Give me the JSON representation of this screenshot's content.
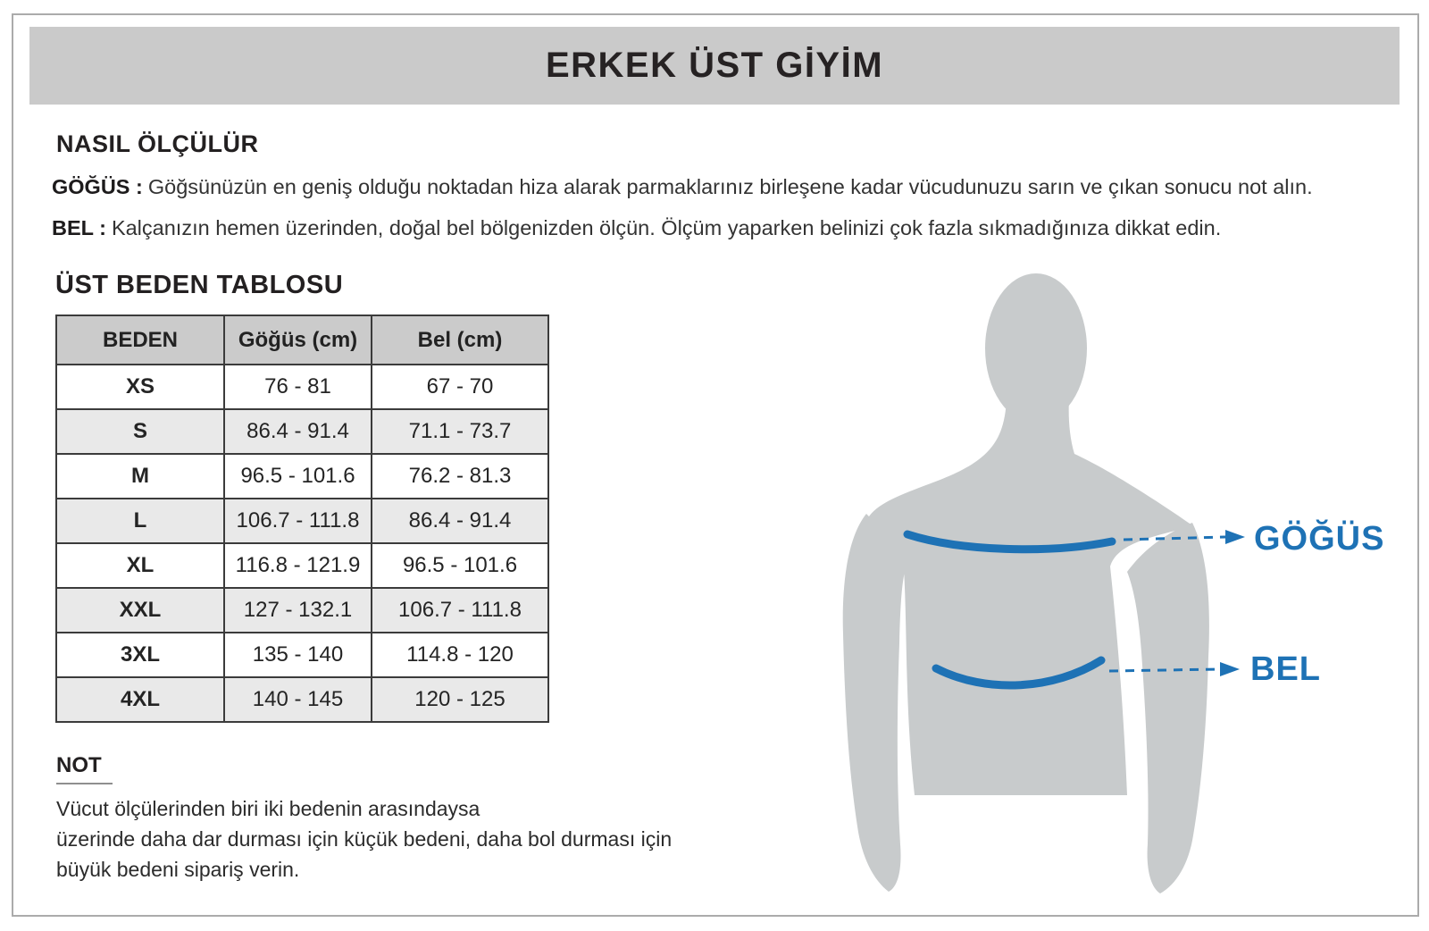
{
  "header": {
    "title": "ERKEK ÜST GİYİM"
  },
  "howto": {
    "title": "NASIL ÖLÇÜLÜR",
    "chest": {
      "label": "GÖĞÜS :",
      "text": "Göğsünüzün en geniş olduğu noktadan hiza alarak parmaklarınız birleşene kadar vücudunuzu sarın ve çıkan sonucu not alın."
    },
    "waist": {
      "label": "BEL :",
      "text": "Kalçanızın hemen üzerinden, doğal bel bölgenizden ölçün. Ölçüm yaparken belinizi çok fazla sıkmadığınıza dikkat edin."
    }
  },
  "size_table": {
    "title": "ÜST BEDEN TABLOSU",
    "columns": [
      "BEDEN",
      "Göğüs (cm)",
      "Bel (cm)"
    ],
    "rows": [
      {
        "size": "XS",
        "chest": "76 - 81",
        "waist": "67 - 70"
      },
      {
        "size": "S",
        "chest": "86.4 - 91.4",
        "waist": "71.1 - 73.7"
      },
      {
        "size": "M",
        "chest": "96.5 - 101.6",
        "waist": "76.2 - 81.3"
      },
      {
        "size": "L",
        "chest": "106.7 - 111.8",
        "waist": "86.4 - 91.4"
      },
      {
        "size": "XL",
        "chest": "116.8 - 121.9",
        "waist": "96.5 - 101.6"
      },
      {
        "size": "XXL",
        "chest": "127 - 132.1",
        "waist": "106.7 - 111.8"
      },
      {
        "size": "3XL",
        "chest": "135 - 140",
        "waist": "114.8 - 120"
      },
      {
        "size": "4XL",
        "chest": "140 - 145",
        "waist": "120 - 125"
      }
    ]
  },
  "note": {
    "title": "NOT",
    "text": "Vücut ölçülerinden biri iki bedenin arasındaysa\nüzerinde daha dar durması için küçük bedeni, daha bol durması için\nbüyük bedeni sipariş verin."
  },
  "figure": {
    "chest_label": "GÖĞÜS",
    "waist_label": "BEL"
  },
  "colors": {
    "accent_blue": "#1E72B5",
    "silhouette_gray": "#C8CBCC",
    "header_band_gray": "#CACACA",
    "table_header_gray": "#CBCBCB",
    "row_alt_gray": "#E9E9E9",
    "table_border_dark": "#3B3B3B",
    "page_border_gray": "#ABABAB"
  }
}
